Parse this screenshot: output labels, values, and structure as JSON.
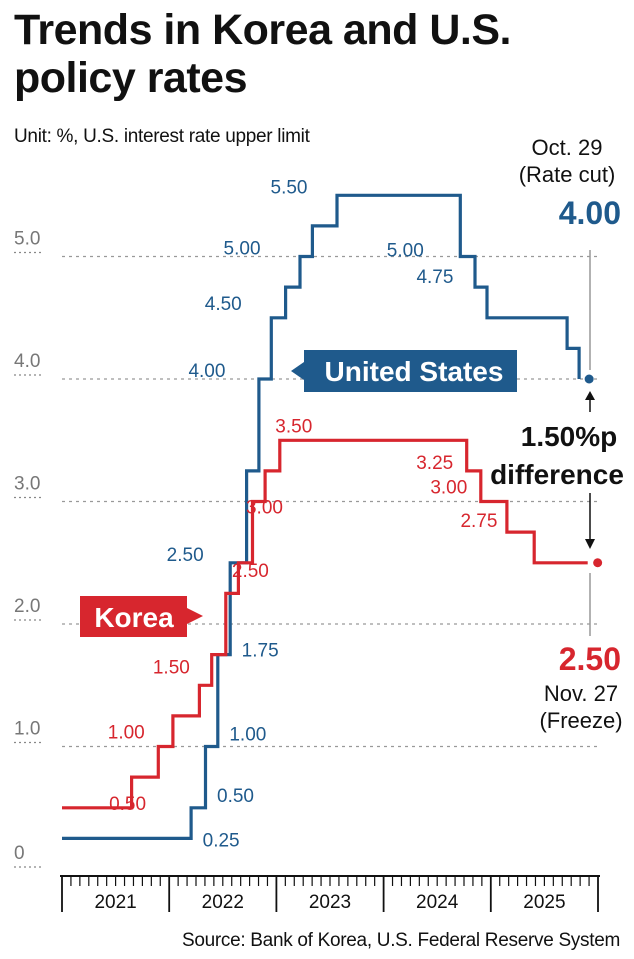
{
  "title_line1": "Trends in Korea and U.S.",
  "title_line2": "policy rates",
  "unit_note": "Unit: %, U.S. interest rate upper limit",
  "source": "Source: Bank of Korea, U.S. Federal Reserve System",
  "colors": {
    "us": "#1f5a8c",
    "korea": "#d7262e",
    "grid": "#999999",
    "text": "#111111"
  },
  "chart_data": {
    "type": "line",
    "step": true,
    "x_unit": "date",
    "ylim": [
      0,
      5.8
    ],
    "yticks": [
      {
        "v": 0,
        "label": "0"
      },
      {
        "v": 1,
        "label": "1.0"
      },
      {
        "v": 2,
        "label": "2.0"
      },
      {
        "v": 3,
        "label": "3.0"
      },
      {
        "v": 4,
        "label": "4.0"
      },
      {
        "v": 5,
        "label": "5.0"
      }
    ],
    "years": [
      "2021",
      "2022",
      "2023",
      "2024",
      "2025"
    ],
    "series": [
      {
        "key": "us",
        "name": "United States",
        "points": [
          [
            "2021-01-01",
            0.25
          ],
          [
            "2022-03-17",
            0.5
          ],
          [
            "2022-05-05",
            1.0
          ],
          [
            "2022-06-16",
            1.75
          ],
          [
            "2022-07-28",
            2.5
          ],
          [
            "2022-09-22",
            3.25
          ],
          [
            "2022-11-03",
            4.0
          ],
          [
            "2022-12-15",
            4.5
          ],
          [
            "2023-02-02",
            4.75
          ],
          [
            "2023-03-23",
            5.0
          ],
          [
            "2023-05-04",
            5.25
          ],
          [
            "2023-07-27",
            5.5
          ],
          [
            "2024-09-19",
            5.0
          ],
          [
            "2024-11-08",
            4.75
          ],
          [
            "2024-12-19",
            4.5
          ],
          [
            "2025-09-18",
            4.25
          ],
          [
            "2025-10-29",
            4.0
          ]
        ],
        "labels": [
          {
            "text": "0.25",
            "date": "2022-03-17",
            "v": 0.25
          },
          {
            "text": "0.50",
            "date": "2022-05-05",
            "v": 0.5
          },
          {
            "text": "1.00",
            "date": "2022-06-16",
            "v": 1.0
          },
          {
            "text": "1.75",
            "date": "2022-07-28",
            "v": 1.75
          },
          {
            "text": "2.50",
            "date": "2022-07-28",
            "v": 2.5
          },
          {
            "text": "4.00",
            "date": "2022-11-03",
            "v": 4.0
          },
          {
            "text": "4.50",
            "date": "2022-12-15",
            "v": 4.5
          },
          {
            "text": "5.00",
            "date": "2023-03-23",
            "v": 5.0
          },
          {
            "text": "5.50",
            "date": "2023-07-27",
            "v": 5.5
          },
          {
            "text": "5.00",
            "date": "2024-09-19",
            "v": 5.0
          },
          {
            "text": "4.75",
            "date": "2024-11-08",
            "v": 4.75
          }
        ]
      },
      {
        "key": "korea",
        "name": "Korea",
        "points": [
          [
            "2021-01-01",
            0.5
          ],
          [
            "2021-08-26",
            0.75
          ],
          [
            "2021-11-25",
            1.0
          ],
          [
            "2022-01-14",
            1.25
          ],
          [
            "2022-04-14",
            1.5
          ],
          [
            "2022-05-26",
            1.75
          ],
          [
            "2022-07-13",
            2.25
          ],
          [
            "2022-08-25",
            2.5
          ],
          [
            "2022-10-12",
            3.0
          ],
          [
            "2022-11-24",
            3.25
          ],
          [
            "2023-01-13",
            3.5
          ],
          [
            "2024-10-11",
            3.25
          ],
          [
            "2024-11-28",
            3.0
          ],
          [
            "2025-02-25",
            2.75
          ],
          [
            "2025-05-29",
            2.5
          ],
          [
            "2025-11-27",
            2.5
          ]
        ],
        "labels": [
          {
            "text": "0.50",
            "date": "2021-08-26",
            "v": 0.5
          },
          {
            "text": "1.00",
            "date": "2021-11-25",
            "v": 1.0
          },
          {
            "text": "1.50",
            "date": "2022-04-14",
            "v": 1.5
          },
          {
            "text": "2.50",
            "date": "2022-08-25",
            "v": 2.5
          },
          {
            "text": "3.00",
            "date": "2022-10-12",
            "v": 3.0
          },
          {
            "text": "3.50",
            "date": "2023-01-13",
            "v": 3.5
          },
          {
            "text": "3.25",
            "date": "2024-10-11",
            "v": 3.25
          },
          {
            "text": "3.00",
            "date": "2024-11-28",
            "v": 3.0
          },
          {
            "text": "2.75",
            "date": "2025-02-25",
            "v": 2.75
          }
        ]
      }
    ],
    "annotations": {
      "us_end": {
        "line1": "Oct. 29",
        "line2": "(Rate cut)",
        "value": "4.00"
      },
      "korea_end": {
        "line1": "Nov. 27",
        "line2": "(Freeze)",
        "value": "2.50"
      },
      "difference": {
        "line1": "1.50%p",
        "line2": "difference"
      },
      "us_tag": "United States",
      "korea_tag": "Korea"
    }
  }
}
